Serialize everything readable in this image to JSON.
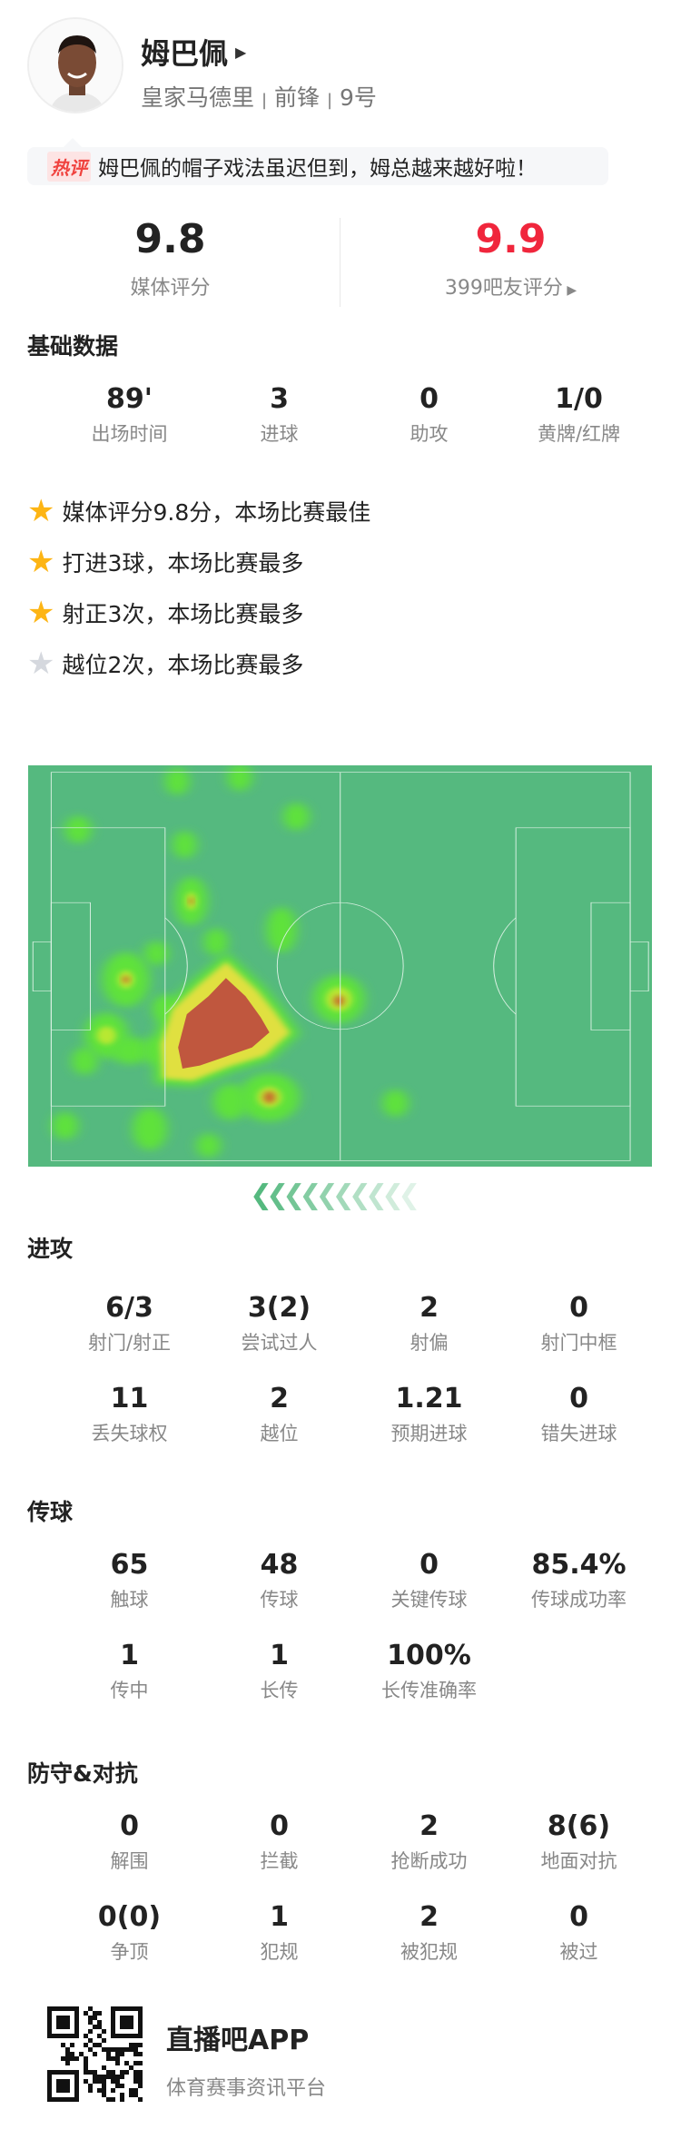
{
  "player": {
    "name": "姆巴佩",
    "team": "皇家马德里",
    "position": "前锋",
    "number": "9号",
    "separator": "|"
  },
  "comment": {
    "tag": "热评",
    "text": "姆巴佩的帽子戏法虽迟但到，姆总越来越好啦！"
  },
  "ratings": {
    "media": {
      "value": "9.8",
      "label": "媒体评分"
    },
    "fans": {
      "value": "9.9",
      "label": "399吧友评分",
      "color": "#f0263c"
    }
  },
  "basic": {
    "title": "基础数据",
    "stats": [
      {
        "value": "89'",
        "label": "出场时间"
      },
      {
        "value": "3",
        "label": "进球"
      },
      {
        "value": "0",
        "label": "助攻"
      },
      {
        "value": "1/0",
        "label": "黄牌/红牌"
      }
    ]
  },
  "highlights": [
    {
      "text": "媒体评分9.8分，本场比赛最佳",
      "star": "gold"
    },
    {
      "text": "打进3球，本场比赛最多",
      "star": "gold"
    },
    {
      "text": "射正3次，本场比赛最多",
      "star": "gold"
    },
    {
      "text": "越位2次，本场比赛最多",
      "star": "silver"
    }
  ],
  "heatmap": {
    "attack_direction": "left"
  },
  "attack": {
    "title": "进攻",
    "stats": [
      {
        "value": "6/3",
        "label": "射门/射正"
      },
      {
        "value": "3(2)",
        "label": "尝试过人"
      },
      {
        "value": "2",
        "label": "射偏"
      },
      {
        "value": "0",
        "label": "射门中框"
      },
      {
        "value": "11",
        "label": "丢失球权"
      },
      {
        "value": "2",
        "label": "越位"
      },
      {
        "value": "1.21",
        "label": "预期进球"
      },
      {
        "value": "0",
        "label": "错失进球"
      }
    ]
  },
  "passing": {
    "title": "传球",
    "stats": [
      {
        "value": "65",
        "label": "触球"
      },
      {
        "value": "48",
        "label": "传球"
      },
      {
        "value": "0",
        "label": "关键传球"
      },
      {
        "value": "85.4%",
        "label": "传球成功率"
      },
      {
        "value": "1",
        "label": "传中"
      },
      {
        "value": "1",
        "label": "长传"
      },
      {
        "value": "100%",
        "label": "长传准确率"
      }
    ]
  },
  "defense": {
    "title": "防守&对抗",
    "stats": [
      {
        "value": "0",
        "label": "解围"
      },
      {
        "value": "0",
        "label": "拦截"
      },
      {
        "value": "2",
        "label": "抢断成功"
      },
      {
        "value": "8(6)",
        "label": "地面对抗"
      },
      {
        "value": "0(0)",
        "label": "争顶"
      },
      {
        "value": "1",
        "label": "犯规"
      },
      {
        "value": "2",
        "label": "被犯规"
      },
      {
        "value": "0",
        "label": "被过"
      }
    ]
  },
  "footer": {
    "app": "直播吧APP",
    "tagline": "体育赛事资讯平台"
  }
}
